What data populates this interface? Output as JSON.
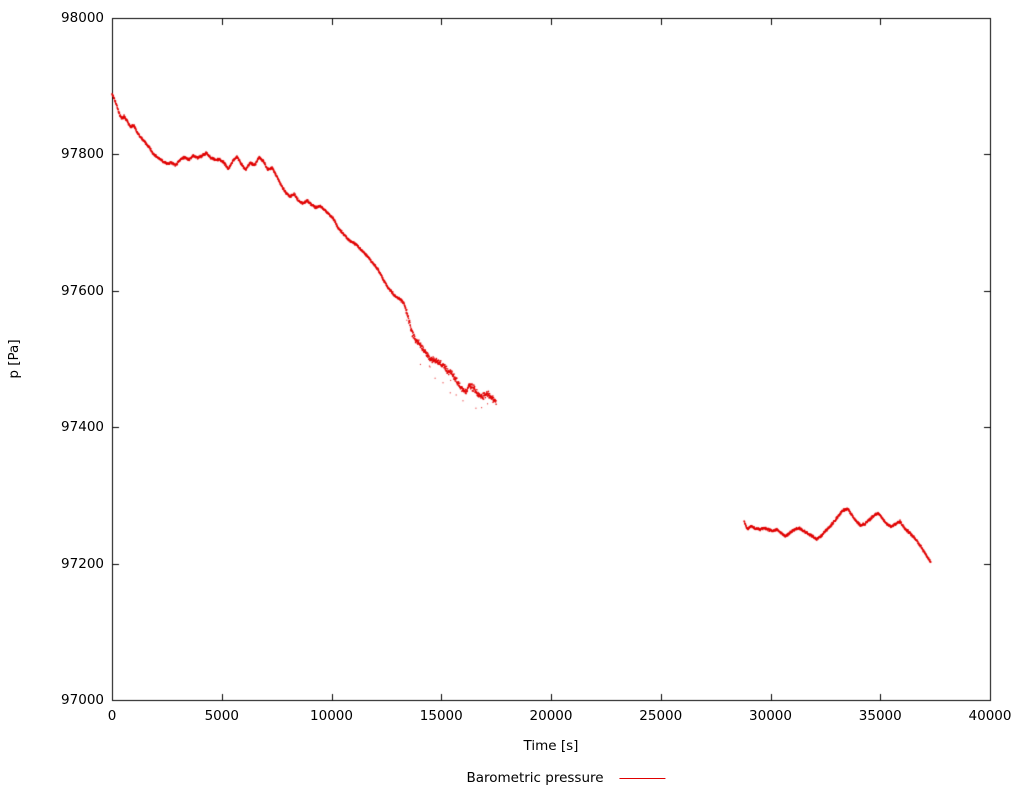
{
  "chart_data": {
    "type": "scatter",
    "title": "",
    "xlabel": "Time [s]",
    "ylabel": "p [Pa]",
    "xlim": [
      0,
      40000
    ],
    "ylim": [
      97000,
      98000
    ],
    "xticks": [
      0,
      5000,
      10000,
      15000,
      20000,
      25000,
      30000,
      35000,
      40000
    ],
    "yticks": [
      97000,
      97200,
      97400,
      97600,
      97800,
      98000
    ],
    "grid": false,
    "legend_position": "bottom-center",
    "series": [
      {
        "name": "Barometric pressure",
        "color": "#e00000",
        "style": "dots",
        "noise": 2.2,
        "noise_boost_from": 13400,
        "noise_boost": 2.6,
        "outlier_range": [
          13400,
          17500
        ],
        "outlier_rate": 0.05,
        "outlier_depth": 28,
        "segments": [
          {
            "keypoints": [
              [
                0,
                97888
              ],
              [
                150,
                97878
              ],
              [
                250,
                97868
              ],
              [
                350,
                97858
              ],
              [
                450,
                97852
              ],
              [
                550,
                97856
              ],
              [
                700,
                97848
              ],
              [
                850,
                97840
              ],
              [
                1000,
                97843
              ],
              [
                1150,
                97832
              ],
              [
                1300,
                97825
              ],
              [
                1500,
                97818
              ],
              [
                1700,
                97810
              ],
              [
                1900,
                97800
              ],
              [
                2100,
                97795
              ],
              [
                2300,
                97790
              ],
              [
                2500,
                97786
              ],
              [
                2700,
                97788
              ],
              [
                2900,
                97784
              ],
              [
                3100,
                97792
              ],
              [
                3300,
                97796
              ],
              [
                3500,
                97792
              ],
              [
                3700,
                97798
              ],
              [
                3900,
                97795
              ],
              [
                4100,
                97798
              ],
              [
                4300,
                97802
              ],
              [
                4500,
                97795
              ],
              [
                4700,
                97792
              ],
              [
                4900,
                97793
              ],
              [
                5100,
                97788
              ],
              [
                5300,
                97778
              ],
              [
                5500,
                97790
              ],
              [
                5700,
                97797
              ],
              [
                5900,
                97785
              ],
              [
                6100,
                97778
              ],
              [
                6300,
                97788
              ],
              [
                6500,
                97784
              ],
              [
                6700,
                97796
              ],
              [
                6900,
                97790
              ],
              [
                7100,
                97778
              ],
              [
                7300,
                97780
              ],
              [
                7500,
                97768
              ],
              [
                7700,
                97755
              ],
              [
                7900,
                97745
              ],
              [
                8100,
                97738
              ],
              [
                8300,
                97742
              ],
              [
                8500,
                97732
              ],
              [
                8700,
                97728
              ],
              [
                8900,
                97732
              ],
              [
                9100,
                97726
              ],
              [
                9300,
                97722
              ],
              [
                9500,
                97724
              ],
              [
                9700,
                97718
              ],
              [
                9900,
                97712
              ],
              [
                10100,
                97705
              ],
              [
                10300,
                97692
              ],
              [
                10500,
                97685
              ],
              [
                10700,
                97678
              ],
              [
                10900,
                97672
              ],
              [
                11100,
                97668
              ],
              [
                11300,
                97662
              ],
              [
                11500,
                97655
              ],
              [
                11700,
                97648
              ],
              [
                11900,
                97640
              ],
              [
                12100,
                97632
              ],
              [
                12300,
                97620
              ],
              [
                12500,
                97608
              ],
              [
                12700,
                97600
              ],
              [
                12900,
                97592
              ],
              [
                13100,
                97588
              ],
              [
                13300,
                97582
              ],
              [
                13500,
                97560
              ],
              [
                13700,
                97535
              ],
              [
                13900,
                97525
              ],
              [
                14100,
                97518
              ],
              [
                14300,
                97508
              ],
              [
                14500,
                97500
              ],
              [
                14700,
                97498
              ],
              [
                14900,
                97495
              ],
              [
                15100,
                97490
              ],
              [
                15300,
                97482
              ],
              [
                15500,
                97478
              ],
              [
                15700,
                97468
              ],
              [
                15900,
                97458
              ],
              [
                16100,
                97452
              ],
              [
                16300,
                97462
              ],
              [
                16500,
                97456
              ],
              [
                16700,
                97448
              ],
              [
                16900,
                97445
              ],
              [
                17100,
                97450
              ],
              [
                17300,
                97442
              ],
              [
                17500,
                97438
              ]
            ]
          },
          {
            "keypoints": [
              [
                28800,
                97262
              ],
              [
                28950,
                97250
              ],
              [
                29100,
                97255
              ],
              [
                29300,
                97252
              ],
              [
                29500,
                97250
              ],
              [
                29700,
                97252
              ],
              [
                29900,
                97250
              ],
              [
                30100,
                97248
              ],
              [
                30300,
                97250
              ],
              [
                30500,
                97244
              ],
              [
                30700,
                97240
              ],
              [
                30900,
                97246
              ],
              [
                31100,
                97250
              ],
              [
                31300,
                97252
              ],
              [
                31500,
                97248
              ],
              [
                31700,
                97244
              ],
              [
                31900,
                97240
              ],
              [
                32100,
                97236
              ],
              [
                32300,
                97240
              ],
              [
                32500,
                97248
              ],
              [
                32700,
                97254
              ],
              [
                32900,
                97262
              ],
              [
                33100,
                97270
              ],
              [
                33300,
                97278
              ],
              [
                33500,
                97280
              ],
              [
                33700,
                97272
              ],
              [
                33900,
                97262
              ],
              [
                34100,
                97256
              ],
              [
                34300,
                97258
              ],
              [
                34500,
                97264
              ],
              [
                34700,
                97270
              ],
              [
                34900,
                97274
              ],
              [
                35100,
                97266
              ],
              [
                35300,
                97258
              ],
              [
                35500,
                97254
              ],
              [
                35700,
                97258
              ],
              [
                35900,
                97262
              ],
              [
                36100,
                97252
              ],
              [
                36300,
                97246
              ],
              [
                36500,
                97240
              ],
              [
                36700,
                97232
              ],
              [
                36900,
                97222
              ],
              [
                37100,
                97212
              ],
              [
                37300,
                97202
              ]
            ]
          }
        ]
      }
    ],
    "axis_color": "#000000"
  }
}
